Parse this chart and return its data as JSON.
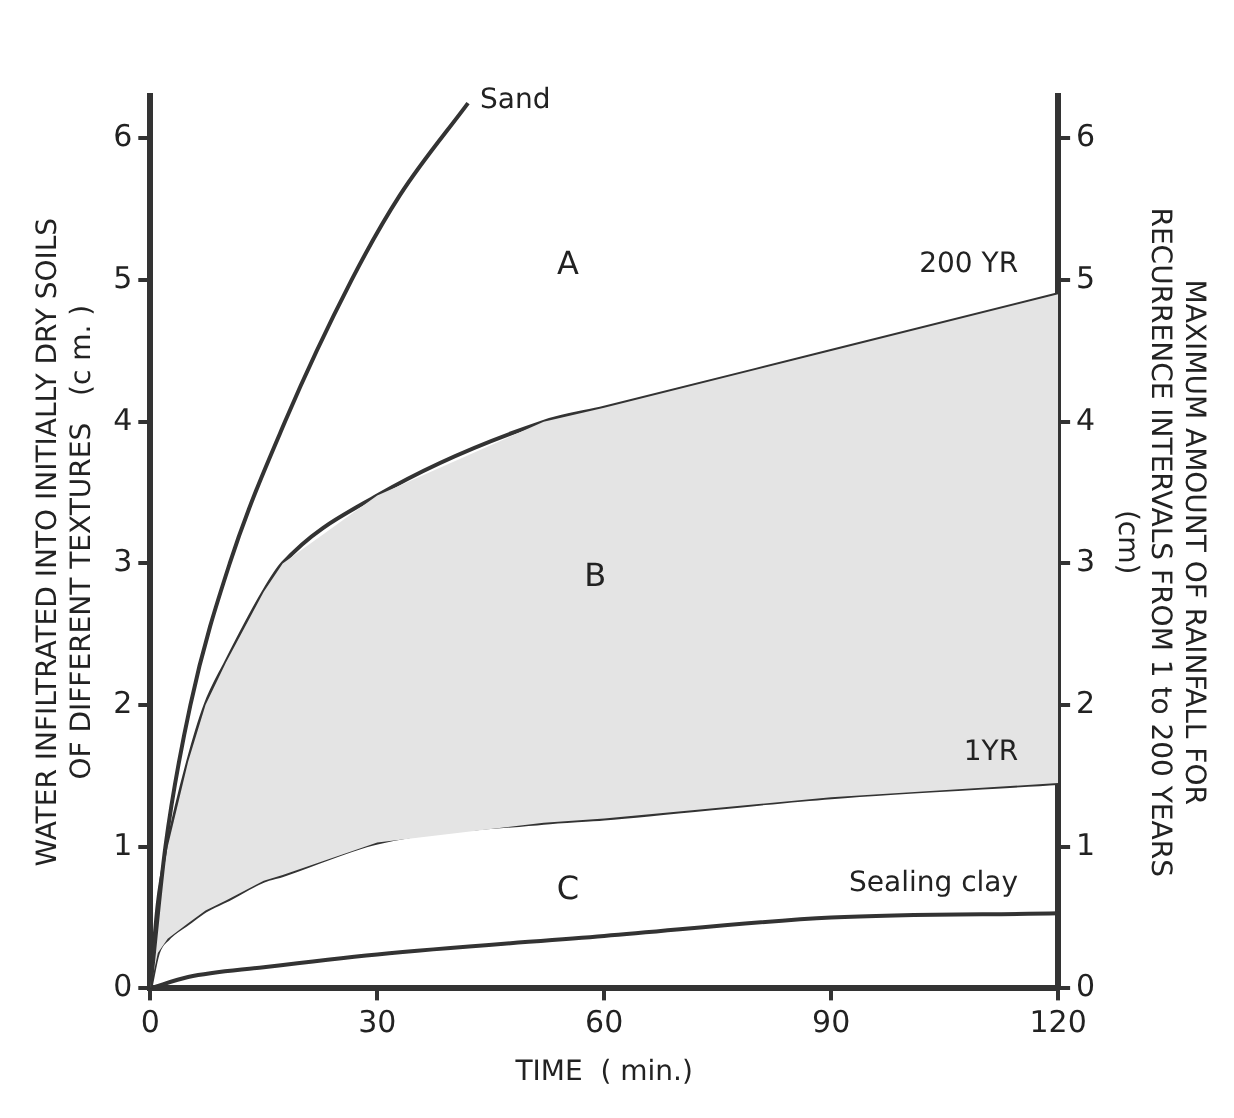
{
  "chart_data": {
    "type": "line",
    "xlabel": "TIME  ( min.)",
    "ylabel": "WATER INFILTRATED INTO INITIALLY DRY SOILS\nOF DIFFERENT TEXTURES   (c m. )",
    "y2label": "MAXIMUM AMOUNT OF RAINFALL FOR\nRECURRENCE INTERVALS FROM 1 to 200 YEARS\n(cm)",
    "xlim": [
      0,
      120
    ],
    "xticks": [
      0,
      30,
      60,
      90,
      120
    ],
    "ylim": [
      0,
      6.3
    ],
    "yticks": [
      0,
      1,
      2,
      3,
      4,
      5,
      6
    ],
    "y2lim": [
      0,
      6.3
    ],
    "y2ticks": [
      0,
      1,
      2,
      3,
      4,
      5,
      6
    ],
    "grid": false,
    "legend": false,
    "marker": "none",
    "line_style": "solid",
    "series": [
      {
        "name": "Sand",
        "color": "#333333",
        "x": [
          0,
          2,
          5.3,
          10.5,
          17.8,
          26.6,
          33,
          42
        ],
        "values": [
          0,
          1,
          2,
          3,
          4,
          5,
          5.6,
          6.25
        ]
      },
      {
        "name": "200 YR",
        "color": "#333333",
        "x": [
          0,
          1,
          2.3,
          5,
          7.3,
          10,
          15,
          17.5,
          30,
          52,
          60,
          90,
          120
        ],
        "values": [
          0,
          0.6,
          1,
          1.6,
          2,
          2.3,
          2.8,
          3,
          3.48,
          4,
          4.1,
          4.5,
          4.9
        ],
        "lower": [
          0,
          0.25,
          0.35,
          0.46,
          0.55,
          0.62,
          0.76,
          0.8,
          1.03,
          1.17,
          1.2,
          1.35,
          1.45
        ],
        "upper": [
          0,
          0.6,
          1,
          1.6,
          2,
          2.3,
          2.8,
          3,
          3.48,
          4,
          4.1,
          4.5,
          4.9
        ]
      },
      {
        "name": "1YR",
        "color": "#333333",
        "x": [
          0,
          1,
          2.3,
          5,
          7.3,
          10,
          15,
          17.5,
          30,
          52,
          60,
          90,
          120
        ],
        "values": [
          0,
          0.25,
          0.35,
          0.46,
          0.55,
          0.62,
          0.76,
          0.8,
          1.03,
          1.17,
          1.2,
          1.35,
          1.45
        ]
      },
      {
        "name": "Sealing clay",
        "color": "#333333",
        "x": [
          0,
          5,
          15,
          30,
          60,
          90,
          120
        ],
        "values": [
          0,
          0.08,
          0.15,
          0.24,
          0.37,
          0.5,
          0.53
        ]
      }
    ],
    "annotations": [
      "A",
      "B",
      "C"
    ]
  }
}
